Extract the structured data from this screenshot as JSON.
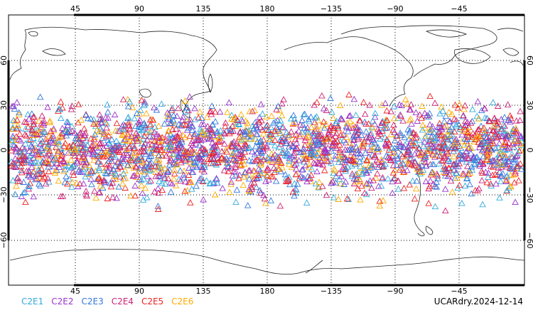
{
  "map": {
    "projection": "cylindrical equidistant, centered on 180",
    "lon_ticks_top": [
      "45",
      "90",
      "135",
      "180",
      "−135",
      "−90",
      "−45"
    ],
    "lon_ticks_bottom": [
      "45",
      "90",
      "135",
      "180",
      "−135",
      "−90",
      "−45"
    ],
    "lat_ticks": [
      "60",
      "30",
      "0",
      "−30",
      "−60"
    ],
    "grid": "dotted, every 45° longitude and 30° latitude",
    "observation_band_lat": [
      -45,
      45
    ],
    "marker": "open-triangle",
    "colors": {
      "C2E1": "#33aadd",
      "C2E2": "#9933cc",
      "C2E3": "#3377dd",
      "C2E4": "#cc2277",
      "C2E5": "#ee2222",
      "C2E6": "#ffaa00"
    }
  },
  "legend": [
    {
      "label": "C2E1",
      "color": "#33aadd"
    },
    {
      "label": "C2E2",
      "color": "#9933cc"
    },
    {
      "label": "C2E3",
      "color": "#3377dd"
    },
    {
      "label": "C2E4",
      "color": "#cc2277"
    },
    {
      "label": "C2E5",
      "color": "#ee2222"
    },
    {
      "label": "C2E6",
      "color": "#ffaa00"
    }
  ],
  "footer": {
    "product": "UCARdry.2024-12-14"
  }
}
